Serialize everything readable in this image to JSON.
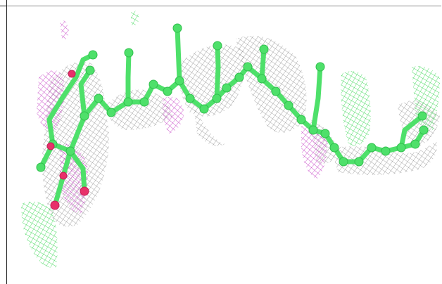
{
  "figure": {
    "colors": {
      "carbon": "#4ee06a",
      "oxygen": "#e8306a",
      "mesh_grey": "#7d7d7d",
      "mesh_green": "#37d651",
      "mesh_magenta": "#c53ec5"
    }
  }
}
